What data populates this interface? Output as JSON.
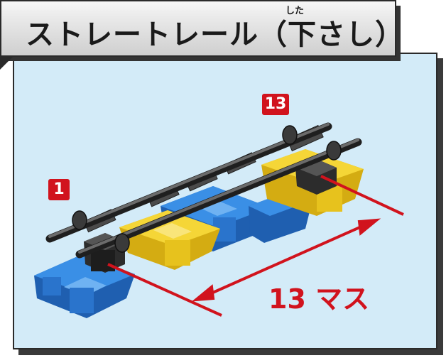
{
  "title": "ストレートレール（下さし）",
  "title_ruby": "した",
  "badges": {
    "start": "1",
    "end": "13"
  },
  "measure_label": "13 マス",
  "colors": {
    "background": "#d3ebf8",
    "accent_red": "#d1131d",
    "block_blue": "#2f7fd6",
    "block_yellow": "#f0cf26",
    "rail_gray": "#3c3c3c"
  }
}
